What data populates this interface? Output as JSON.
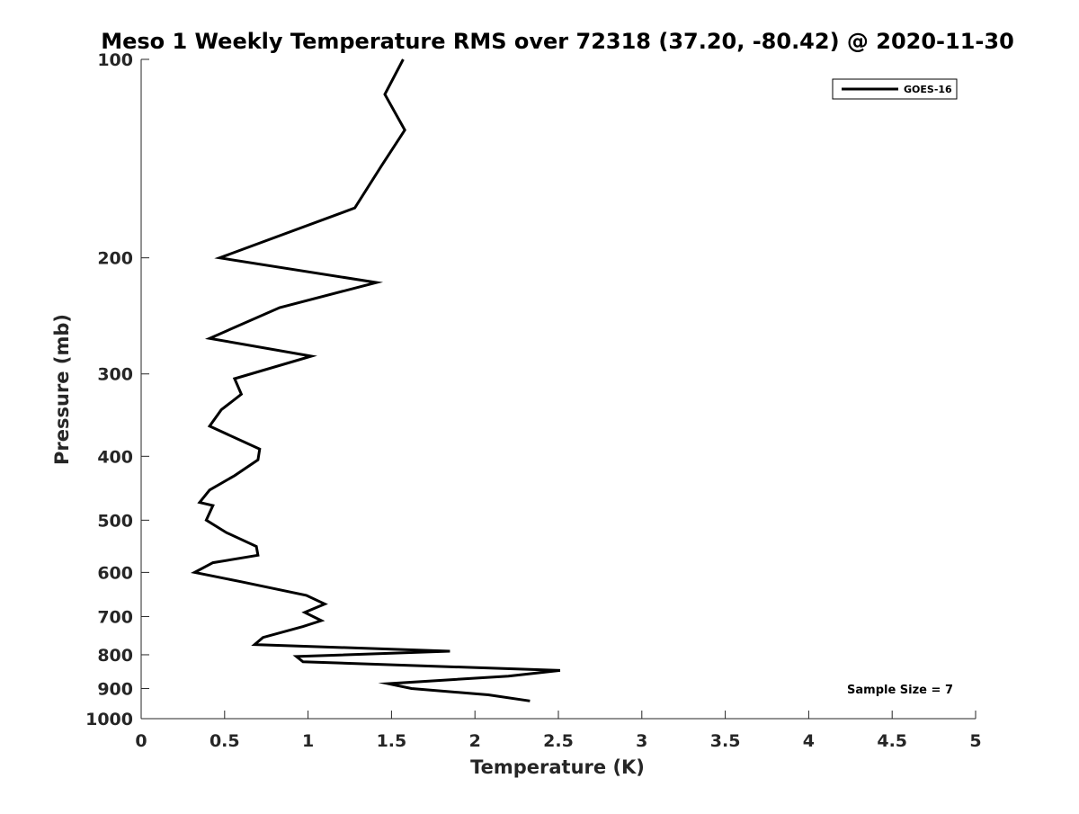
{
  "chart_data": {
    "type": "line",
    "title": "Meso 1 Weekly Temperature RMS over 72318 (37.20, -80.42) @ 2020-11-30",
    "xlabel": "Temperature (K)",
    "ylabel": "Pressure (mb)",
    "xlim": [
      0,
      5
    ],
    "ylim": [
      100,
      1000
    ],
    "y_scale": "log",
    "y_reversed": true,
    "x_ticks": [
      0,
      0.5,
      1,
      1.5,
      2,
      2.5,
      3,
      3.5,
      4,
      4.5,
      5
    ],
    "x_tick_labels": [
      "0",
      "0.5",
      "1",
      "1.5",
      "2",
      "2.5",
      "3",
      "3.5",
      "4",
      "4.5",
      "5"
    ],
    "y_ticks": [
      100,
      200,
      300,
      400,
      500,
      600,
      700,
      800,
      900,
      1000
    ],
    "y_tick_labels": [
      "100",
      "200",
      "300",
      "400",
      "500",
      "600",
      "700",
      "800",
      "900",
      "1000"
    ],
    "grid": false,
    "legend_position": "top-right",
    "series": [
      {
        "name": "GOES-16",
        "color": "#000000",
        "x": [
          1.57,
          1.46,
          1.58,
          1.44,
          1.28,
          0.47,
          1.41,
          0.83,
          0.41,
          1.02,
          0.56,
          0.6,
          0.48,
          0.41,
          0.71,
          0.7,
          0.56,
          0.41,
          0.35,
          0.43,
          0.39,
          0.51,
          0.69,
          0.7,
          0.43,
          0.32,
          0.6,
          0.99,
          1.1,
          0.98,
          1.08,
          0.97,
          0.73,
          0.68,
          1.85,
          0.93,
          0.97,
          2.51,
          2.2,
          1.48,
          1.62,
          2.08,
          2.33
        ],
        "y": [
          100,
          113,
          128,
          145,
          168,
          200,
          218,
          238,
          265,
          282,
          305,
          322,
          340,
          360,
          390,
          405,
          428,
          450,
          470,
          475,
          500,
          522,
          548,
          565,
          580,
          600,
          620,
          650,
          670,
          690,
          710,
          725,
          753,
          772,
          790,
          805,
          820,
          845,
          862,
          885,
          900,
          920,
          940
        ]
      }
    ],
    "annotations": [
      "Sample Size = 7"
    ]
  }
}
